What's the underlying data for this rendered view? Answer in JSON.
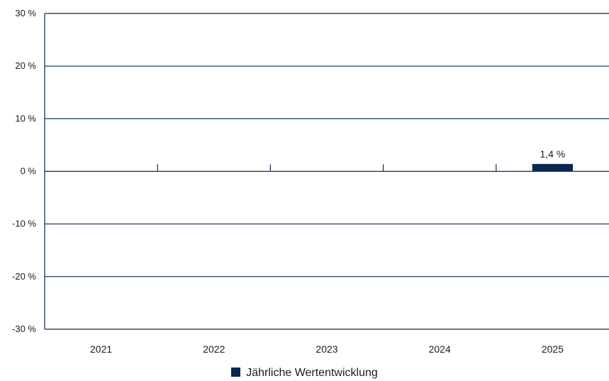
{
  "chart_data": {
    "type": "bar",
    "categories": [
      "2021",
      "2022",
      "2023",
      "2024",
      "2025"
    ],
    "series": [
      {
        "name": "Jährliche Wertentwicklung",
        "values": [
          null,
          null,
          null,
          null,
          1.4
        ],
        "data_labels": [
          "",
          "",
          "",
          "",
          "1,4 %"
        ]
      }
    ],
    "ylim": [
      -30,
      30
    ],
    "yticks": [
      30,
      20,
      10,
      0,
      -10,
      -20,
      -30
    ],
    "ytick_labels": [
      "30 %",
      "20 %",
      "10 %",
      "0 %",
      "-10 %",
      "-20 %",
      "-30 %"
    ],
    "grid": true,
    "legend_position": "bottom-center",
    "colors": {
      "bar": "#0a2850",
      "axis": "#0a2850",
      "text": "#1b1b1b"
    }
  }
}
